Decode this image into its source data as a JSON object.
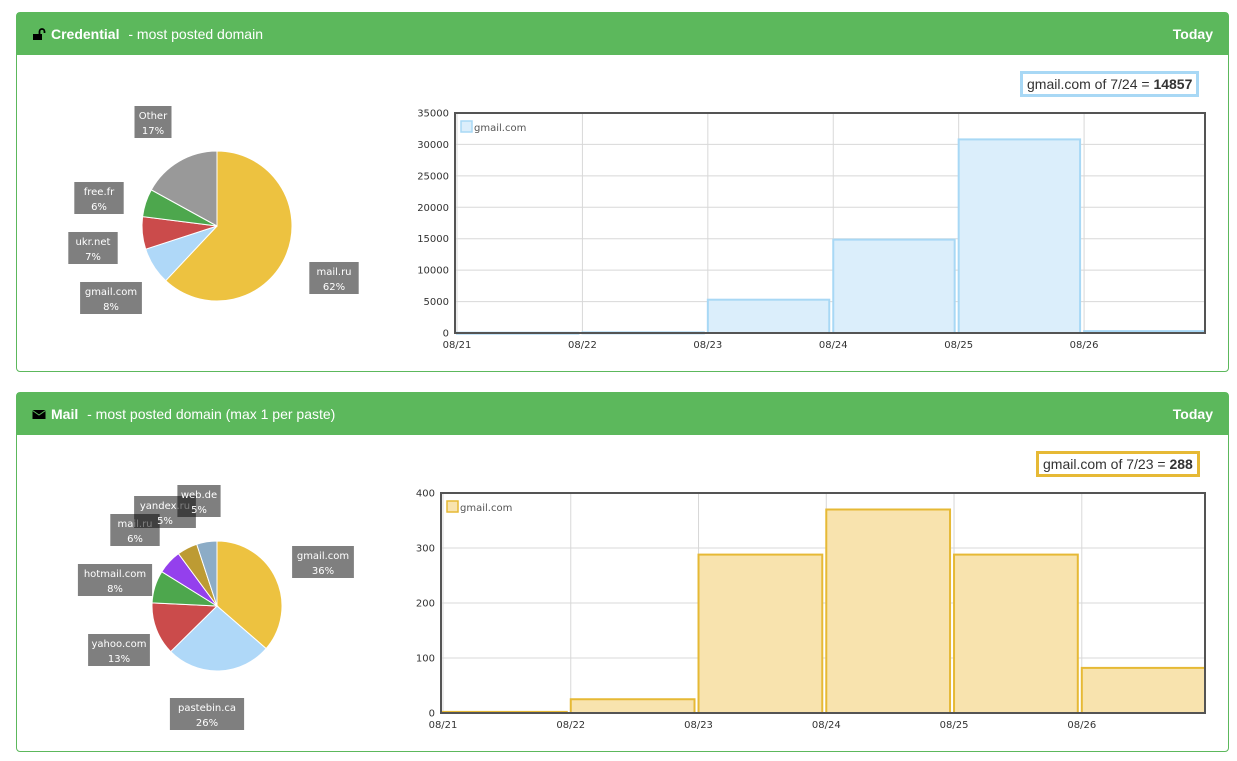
{
  "panels": [
    {
      "id": "credential",
      "icon": "unlock-icon",
      "title_bold": "Credential",
      "title_rest": " - most posted domain",
      "period": "Today",
      "color": "#a8d8f5",
      "fill": "#dbeefb",
      "tooltip": {
        "prefix": "gmail.com of 7/24 = ",
        "value": "14857"
      }
    },
    {
      "id": "mail",
      "icon": "envelope-icon",
      "title_bold": "Mail",
      "title_rest": " - most posted domain (max 1 per paste)",
      "period": "Today",
      "color": "#e6b935",
      "fill": "#f8e3ae",
      "tooltip": {
        "prefix": "gmail.com of 7/23 = ",
        "value": "288"
      }
    }
  ],
  "chart_data": [
    {
      "type": "pie",
      "slices": [
        {
          "label": "mail.ru",
          "percent": "62%",
          "value": 62,
          "color": "#edc240"
        },
        {
          "label": "gmail.com",
          "percent": "8%",
          "value": 8,
          "color": "#afd8f8"
        },
        {
          "label": "ukr.net",
          "percent": "7%",
          "value": 7,
          "color": "#cb4b4b"
        },
        {
          "label": "free.fr",
          "percent": "6%",
          "value": 6,
          "color": "#4da74d"
        },
        {
          "label": "Other",
          "percent": "17%",
          "value": 17,
          "color": "#999999"
        }
      ]
    },
    {
      "type": "bar",
      "categories": [
        "08/21",
        "08/22",
        "08/23",
        "08/24",
        "08/25",
        "08/26"
      ],
      "series": [
        {
          "name": "gmail.com",
          "values": [
            50,
            100,
            5300,
            14857,
            30800,
            300
          ]
        }
      ],
      "ylim": [
        0,
        35000
      ],
      "yticks": [
        "0",
        "5000",
        "10000",
        "15000",
        "20000",
        "25000",
        "30000",
        "35000"
      ],
      "grid": true,
      "legend": "top-left"
    },
    {
      "type": "pie",
      "slices": [
        {
          "label": "gmail.com",
          "percent": "36%",
          "value": 36,
          "color": "#edc240"
        },
        {
          "label": "pastebin.ca",
          "percent": "26%",
          "value": 26,
          "color": "#afd8f8"
        },
        {
          "label": "yahoo.com",
          "percent": "13%",
          "value": 13,
          "color": "#cb4b4b"
        },
        {
          "label": "hotmail.com",
          "percent": "8%",
          "value": 8,
          "color": "#4da74d"
        },
        {
          "label": "mail.ru",
          "percent": "6%",
          "value": 6,
          "color": "#9440ed"
        },
        {
          "label": "yandex.ru",
          "percent": "5%",
          "value": 5,
          "color": "#bd9b33"
        },
        {
          "label": "web.de",
          "percent": "5%",
          "value": 5,
          "color": "#8cacc6"
        }
      ]
    },
    {
      "type": "bar",
      "categories": [
        "08/21",
        "08/22",
        "08/23",
        "08/24",
        "08/25",
        "08/26"
      ],
      "series": [
        {
          "name": "gmail.com",
          "values": [
            2,
            25,
            288,
            370,
            288,
            82
          ]
        }
      ],
      "ylim": [
        0,
        400
      ],
      "yticks": [
        "0",
        "100",
        "200",
        "300",
        "400"
      ],
      "grid": true,
      "legend": "top-left"
    }
  ]
}
